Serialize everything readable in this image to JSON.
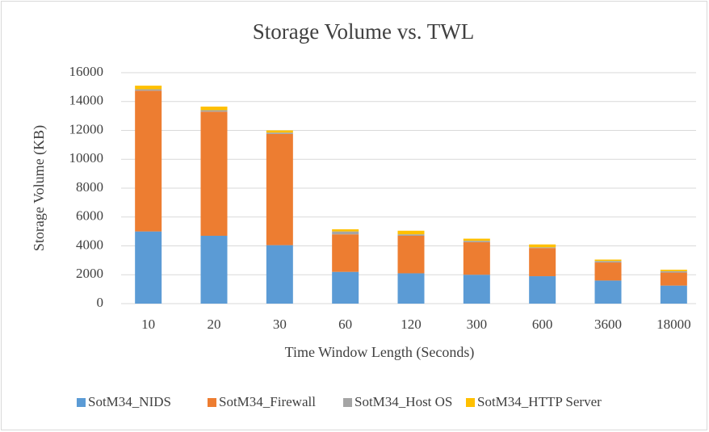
{
  "chart_data": {
    "type": "stacked_bar",
    "title": "Storage Volume vs. TWL",
    "x_label": "Time Window Length (Seconds)",
    "y_label": "Storage Volume  (KB)",
    "categories": [
      "10",
      "20",
      "30",
      "60",
      "120",
      "300",
      "600",
      "3600",
      "18000"
    ],
    "series": [
      {
        "name": "SotM34_NIDS",
        "color": "#5b9bd5",
        "values": [
          5000,
          4700,
          4050,
          2200,
          2100,
          2000,
          1900,
          1600,
          1250
        ]
      },
      {
        "name": "SotM34_Firewall",
        "color": "#ed7d31",
        "values": [
          9750,
          8600,
          7700,
          2600,
          2600,
          2250,
          1950,
          1250,
          900
        ]
      },
      {
        "name": "SotM34_Host OS",
        "color": "#a5a5a5",
        "values": [
          100,
          100,
          100,
          200,
          100,
          100,
          50,
          100,
          100
        ]
      },
      {
        "name": "SotM34_HTTP Server",
        "color": "#ffc000",
        "values": [
          250,
          250,
          150,
          150,
          250,
          150,
          200,
          100,
          100
        ]
      }
    ],
    "ylim": [
      0,
      16000
    ],
    "yticks": [
      0,
      2000,
      4000,
      6000,
      8000,
      10000,
      12000,
      14000,
      16000
    ],
    "grid": true,
    "legend": "bottom"
  }
}
